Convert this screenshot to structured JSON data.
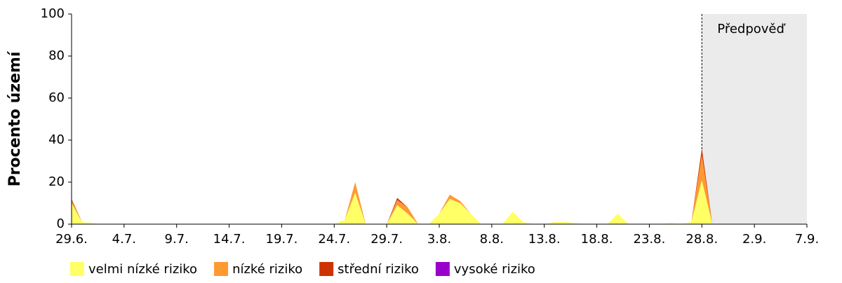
{
  "chart_data": {
    "type": "stacked_area",
    "y_label": "Procento území",
    "x": [
      "29.6.",
      "30.6.",
      "1.7.",
      "2.7.",
      "3.7.",
      "4.7.",
      "5.7.",
      "6.7.",
      "7.7.",
      "8.7.",
      "9.7.",
      "10.7.",
      "11.7.",
      "12.7.",
      "13.7.",
      "14.7.",
      "15.7.",
      "16.7.",
      "17.7.",
      "18.7.",
      "19.7.",
      "20.7.",
      "21.7.",
      "22.7.",
      "23.7.",
      "24.7.",
      "25.7.",
      "26.7.",
      "27.7.",
      "28.7.",
      "29.7.",
      "30.7.",
      "31.7.",
      "1.8.",
      "2.8.",
      "3.8.",
      "4.8.",
      "5.8.",
      "6.8.",
      "7.8.",
      "8.8.",
      "9.8.",
      "10.8.",
      "11.8.",
      "12.8.",
      "13.8.",
      "14.8.",
      "15.8.",
      "16.8.",
      "17.8.",
      "18.8.",
      "19.8.",
      "20.8.",
      "21.8.",
      "22.8.",
      "23.8.",
      "24.8.",
      "25.8.",
      "26.8.",
      "27.8.",
      "28.8.",
      "29.8."
    ],
    "series": [
      {
        "name": "velmi nízké riziko",
        "color": "#ffff66",
        "values": [
          10,
          1,
          0.5,
          0,
          0,
          0,
          0,
          0,
          0,
          0,
          0,
          0,
          0,
          0,
          0,
          0,
          0,
          0,
          0,
          0,
          0,
          0,
          0,
          0,
          0,
          0,
          2,
          15,
          0,
          0,
          0,
          9,
          5,
          0,
          0,
          5,
          12,
          10,
          5,
          0,
          0,
          0,
          6,
          1,
          0,
          0,
          1,
          1,
          0.5,
          0,
          0,
          0,
          5,
          0,
          0,
          0,
          0,
          0.5,
          0,
          1,
          21,
          0
        ]
      },
      {
        "name": "nízké riziko",
        "color": "#ff9933",
        "values": [
          1.5,
          0,
          0,
          0,
          0,
          0,
          0,
          0,
          0,
          0,
          0,
          0,
          0,
          0,
          0,
          0,
          0,
          0,
          0,
          0,
          0,
          0,
          0,
          0,
          0,
          0,
          0,
          5,
          0,
          0,
          0,
          2.5,
          3,
          0,
          0,
          0,
          2,
          1,
          0,
          0,
          0,
          0,
          0,
          0,
          0,
          0,
          0,
          0,
          0,
          0,
          0,
          0,
          0,
          0,
          0,
          0,
          0,
          0,
          0,
          0,
          12,
          0
        ]
      },
      {
        "name": "střední riziko",
        "color": "#cc3300",
        "values": [
          0.5,
          0,
          0,
          0,
          0,
          0,
          0,
          0,
          0,
          0,
          0,
          0,
          0,
          0,
          0,
          0,
          0,
          0,
          0,
          0,
          0,
          0,
          0,
          0,
          0,
          0,
          0,
          0,
          0,
          0,
          0,
          1,
          0,
          0,
          0,
          0,
          0,
          0,
          0,
          0,
          0,
          0,
          0,
          0,
          0,
          0,
          0,
          0,
          0,
          0,
          0,
          0,
          0,
          0,
          0,
          0,
          0,
          0,
          0,
          0,
          3,
          0
        ]
      },
      {
        "name": "vysoké riziko",
        "color": "#9900cc",
        "values": [
          0,
          0,
          0,
          0,
          0,
          0,
          0,
          0,
          0,
          0,
          0,
          0,
          0,
          0,
          0,
          0,
          0,
          0,
          0,
          0,
          0,
          0,
          0,
          0,
          0,
          0,
          0,
          0,
          0,
          0,
          0,
          0,
          0,
          0,
          0,
          0,
          0,
          0,
          0,
          0,
          0,
          0,
          0,
          0,
          0,
          0,
          0,
          0,
          0,
          0,
          0,
          0,
          0,
          0,
          0,
          0,
          0,
          0,
          0,
          0,
          0,
          0
        ]
      }
    ],
    "xlim": [
      "29.6.",
      "7.9."
    ],
    "xticks": [
      "29.6.",
      "4.7.",
      "9.7.",
      "14.7.",
      "19.7.",
      "24.7.",
      "29.7.",
      "3.8.",
      "8.8.",
      "13.8.",
      "18.8.",
      "23.8.",
      "28.8.",
      "2.9.",
      "7.9."
    ],
    "ylim": [
      0,
      100
    ],
    "yticks": [
      0,
      20,
      40,
      60,
      80,
      100
    ],
    "forecast": {
      "start": "28.8.",
      "label": "Předpověď",
      "color": "#ebebeb"
    },
    "legend": "bottom"
  }
}
